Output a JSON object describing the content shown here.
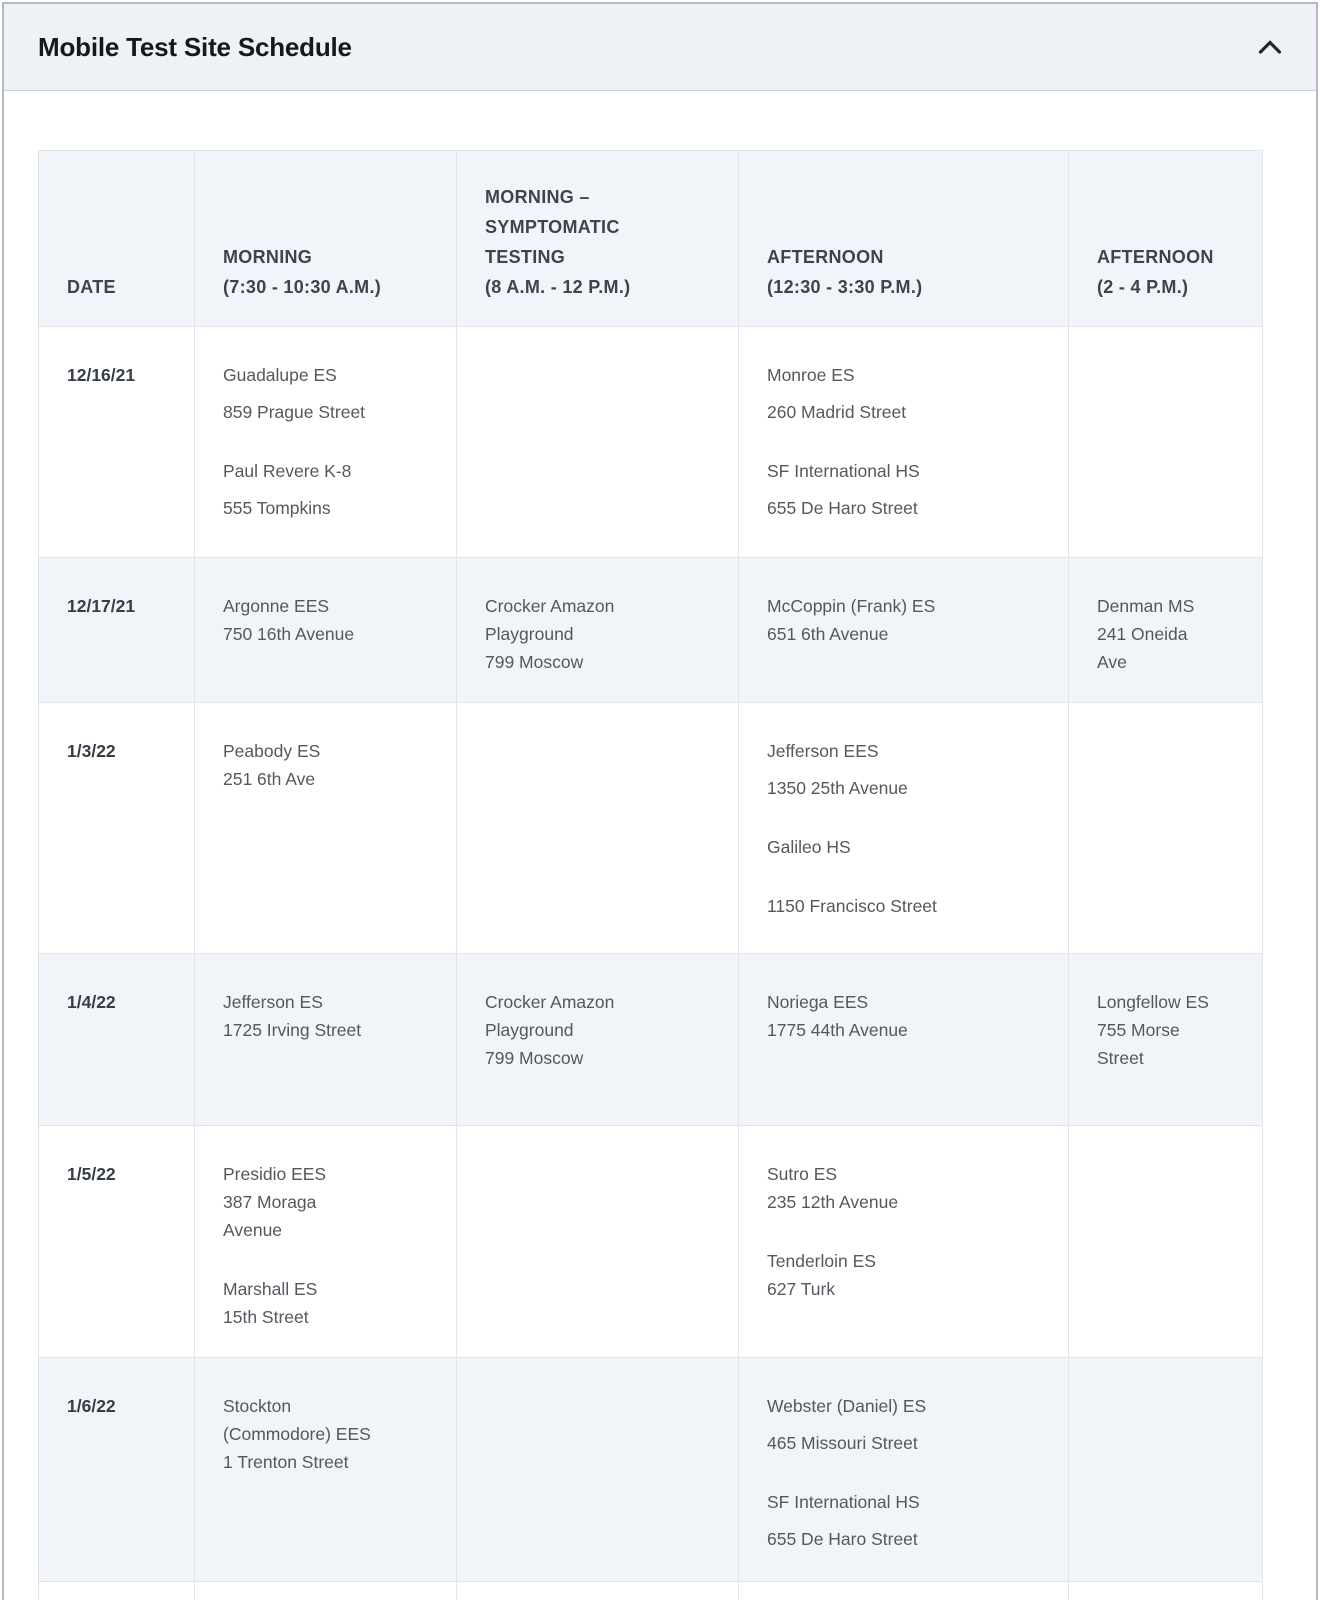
{
  "panel": {
    "title": "Mobile Test Site Schedule",
    "collapse_icon": "chevron-up",
    "state": "expanded"
  },
  "colors": {
    "accent_gold": "#efc32f",
    "header_bar_bg": "#eef1f6",
    "shaded_row_bg": "#f1f4f9",
    "grid_border": "#e1e4e9",
    "title_text": "#15181d",
    "header_text": "#3d4450",
    "body_text": "#54585f"
  },
  "table": {
    "columns": [
      {
        "id": "date",
        "label_lines": [
          "DATE"
        ]
      },
      {
        "id": "morning",
        "label_lines": [
          "MORNING",
          "(7:30 - 10:30 A.M.)"
        ]
      },
      {
        "id": "morning_symptomatic",
        "label_lines": [
          "MORNING –",
          "SYMPTOMATIC",
          "TESTING",
          "(8 A.M. - 12 P.M.)"
        ]
      },
      {
        "id": "afternoon",
        "label_lines": [
          "AFTERNOON",
          "(12:30 - 3:30 P.M.)"
        ]
      },
      {
        "id": "afternoon_late",
        "label_lines": [
          "AFTERNOON",
          "(2 - 4 P.M.)"
        ]
      }
    ],
    "rows": [
      {
        "date": "12/16/21",
        "cells": {
          "morning": [
            [
              "Guadalupe ES"
            ],
            [
              "859 Prague Street"
            ],
            [],
            [
              "Paul Revere K-8"
            ],
            [
              "555 Tompkins"
            ]
          ],
          "morning_symptomatic": [],
          "afternoon": [
            [
              "Monroe ES"
            ],
            [
              "260 Madrid Street"
            ],
            [],
            [
              "SF International HS"
            ],
            [
              "655 De Haro Street"
            ]
          ],
          "afternoon_late": []
        }
      },
      {
        "date": "12/17/21",
        "cells": {
          "morning": [
            [
              "Argonne EES",
              "750 16th Avenue"
            ]
          ],
          "morning_symptomatic": [
            [
              "Crocker Amazon",
              "Playground",
              "799 Moscow"
            ]
          ],
          "afternoon": [
            [
              "McCoppin (Frank) ES",
              "651 6th Avenue"
            ]
          ],
          "afternoon_late": [
            [
              "Denman MS",
              "241 Oneida",
              "Ave"
            ]
          ]
        }
      },
      {
        "date": "1/3/22",
        "cells": {
          "morning": [
            [
              "Peabody ES",
              "251 6th Ave"
            ]
          ],
          "morning_symptomatic": [],
          "afternoon": [
            [
              "Jefferson EES"
            ],
            [
              "1350 25th Avenue"
            ],
            [],
            [
              "Galileo HS"
            ],
            [],
            [
              "1150 Francisco Street"
            ]
          ],
          "afternoon_late": []
        }
      },
      {
        "date": "1/4/22",
        "cells": {
          "morning": [
            [
              "Jefferson ES",
              "1725 Irving Street"
            ]
          ],
          "morning_symptomatic": [
            [
              "Crocker Amazon",
              "Playground",
              "799 Moscow"
            ]
          ],
          "afternoon": [
            [
              "Noriega EES",
              "1775 44th Avenue"
            ]
          ],
          "afternoon_late": [
            [
              "Longfellow ES",
              "755 Morse",
              "Street"
            ]
          ]
        }
      },
      {
        "date": "1/5/22",
        "cells": {
          "morning": [
            [
              "Presidio EES",
              "387 Moraga",
              "Avenue"
            ],
            [],
            [
              "Marshall ES",
              "15th Street"
            ]
          ],
          "morning_symptomatic": [],
          "afternoon": [
            [
              "Sutro ES",
              "235 12th Avenue"
            ],
            [],
            [
              "Tenderloin ES",
              "627 Turk"
            ]
          ],
          "afternoon_late": []
        }
      },
      {
        "date": "1/6/22",
        "cells": {
          "morning": [
            [
              "Stockton",
              "(Commodore) EES",
              "1 Trenton Street"
            ]
          ],
          "morning_symptomatic": [],
          "afternoon": [
            [
              "Webster (Daniel) ES"
            ],
            [
              "465 Missouri Street"
            ],
            [],
            [
              "SF International HS"
            ],
            [
              "655 De Haro Street"
            ]
          ],
          "afternoon_late": []
        }
      }
    ]
  }
}
